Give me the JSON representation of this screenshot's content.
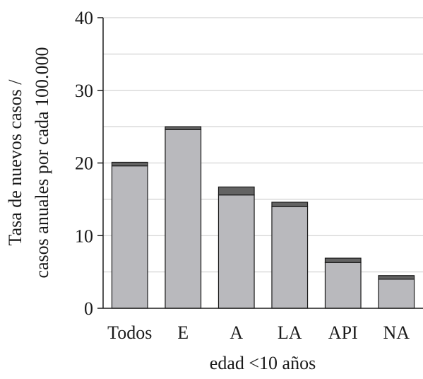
{
  "chart_data": {
    "type": "bar",
    "stacked": true,
    "categories": [
      "Todos",
      "E",
      "A",
      "LA",
      "API",
      "NA"
    ],
    "series": [
      {
        "values": [
          19.6,
          24.6,
          15.6,
          14.0,
          6.3,
          4.0
        ],
        "color": "#b9b9bd"
      },
      {
        "values": [
          0.5,
          0.4,
          1.1,
          0.6,
          0.6,
          0.5
        ],
        "color": "#636363"
      }
    ],
    "xlabel": "edad <10 años",
    "ylabel_lines": [
      "Tasa de nuevos casos /",
      "casos anuales por cada 100.000"
    ],
    "ylim": [
      0,
      40
    ],
    "yticks": [
      0,
      10,
      20,
      30,
      40
    ],
    "grid": true
  }
}
